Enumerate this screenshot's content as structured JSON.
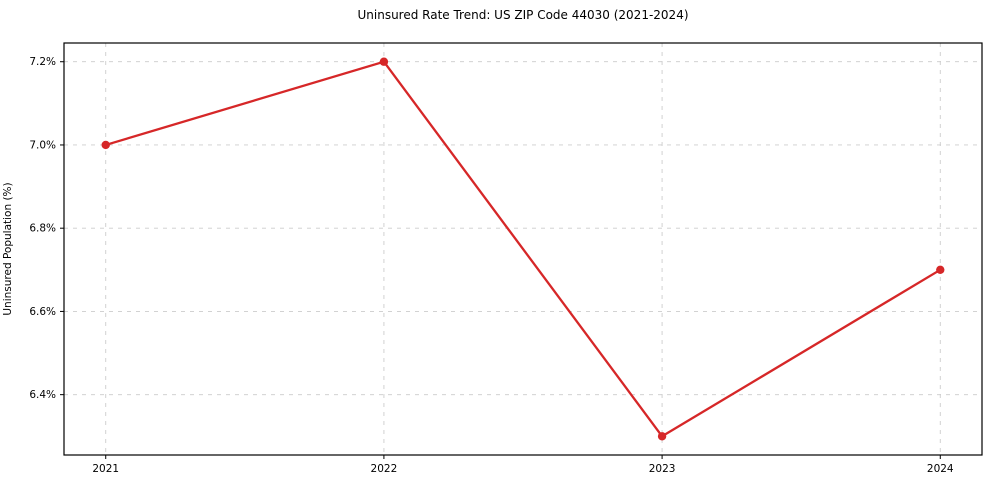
{
  "chart_data": {
    "type": "line",
    "title": "Uninsured Rate Trend: US ZIP Code 44030 (2021-2024)",
    "xlabel": "",
    "ylabel": "Uninsured Population (%)",
    "x": [
      2021,
      2022,
      2023,
      2024
    ],
    "values": [
      7.0,
      7.2,
      6.3,
      6.7
    ],
    "xlim": [
      2020.85,
      2024.15
    ],
    "ylim": [
      6.255,
      7.245
    ],
    "xticks": [
      2021,
      2022,
      2023,
      2024
    ],
    "xtick_labels": [
      "2021",
      "2022",
      "2023",
      "2024"
    ],
    "yticks": [
      6.4,
      6.6,
      6.8,
      7.0,
      7.2
    ],
    "ytick_labels": [
      "6.4%",
      "6.6%",
      "6.8%",
      "7.0%",
      "7.2%"
    ],
    "grid": true,
    "grid_style": "dashed",
    "legend": false,
    "marker": "circle",
    "colors": {
      "line": "#d62728",
      "marker": "#d62728",
      "grid": "#cccccc",
      "spine": "#000000",
      "text": "#000000",
      "background": "#ffffff"
    }
  }
}
